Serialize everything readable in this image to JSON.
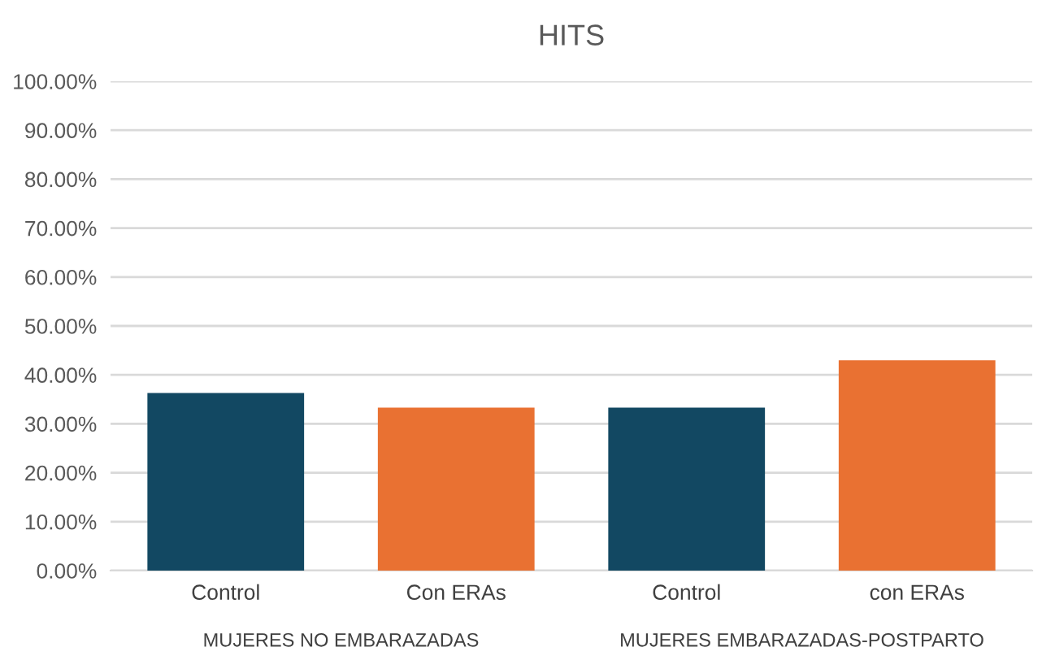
{
  "chart_data": {
    "type": "bar",
    "title": "HITS",
    "categories": [
      "Control",
      "Con ERAs",
      "Control",
      "con ERAs"
    ],
    "values": [
      36.3,
      33.3,
      33.3,
      43.0
    ],
    "colors": [
      "#124862",
      "#e97132",
      "#124862",
      "#e97132"
    ],
    "ylim": [
      0,
      100
    ],
    "yticks": [
      {
        "value": 0,
        "label": "0.00%"
      },
      {
        "value": 10,
        "label": "10.00%"
      },
      {
        "value": 20,
        "label": "20.00%"
      },
      {
        "value": 30,
        "label": "30.00%"
      },
      {
        "value": 40,
        "label": "40.00%"
      },
      {
        "value": 50,
        "label": "50.00%"
      },
      {
        "value": 60,
        "label": "60.00%"
      },
      {
        "value": 70,
        "label": "70.00%"
      },
      {
        "value": 80,
        "label": "80.00%"
      },
      {
        "value": 90,
        "label": "90.00%"
      },
      {
        "value": 100,
        "label": "100.00%"
      }
    ],
    "grid": "y",
    "annotations": [
      "MUJERES NO EMBARAZADAS",
      "MUJERES EMBARAZADAS-POSTPARTO"
    ]
  }
}
